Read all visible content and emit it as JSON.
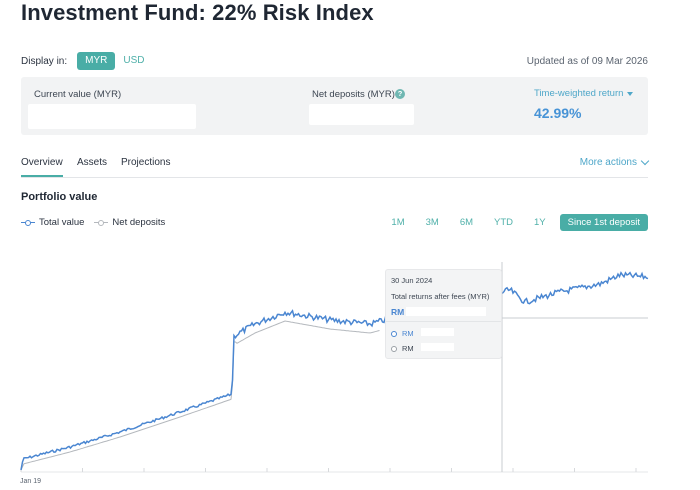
{
  "header": {
    "title": "Investment Fund: 22% Risk Index"
  },
  "display": {
    "label": "Display in:",
    "options": [
      "MYR",
      "USD"
    ],
    "selected": "MYR",
    "updated": "Updated as of 09 Mar 2026"
  },
  "summary": {
    "current_value_label": "Current value (MYR)",
    "net_deposits_label": "Net deposits (MYR)",
    "help_icon": "?",
    "twr_label": "Time-weighted return",
    "twr_value": "42.99%"
  },
  "tabs": [
    "Overview",
    "Assets",
    "Projections"
  ],
  "more_actions": "More actions",
  "section_title": "Portfolio value",
  "legend": [
    {
      "name": "Total value",
      "color": "#4a86d1"
    },
    {
      "name": "Net deposits",
      "color": "#b4b8bd"
    }
  ],
  "ranges": [
    "1M",
    "3M",
    "6M",
    "YTD",
    "1Y",
    "Since 1st deposit"
  ],
  "active_range": "Since 1st deposit",
  "tooltip": {
    "date": "30 Jun 2024",
    "subtitle": "Total returns after fees (MYR)",
    "main": "RM",
    "rows": [
      "RM",
      "RM"
    ]
  },
  "x_axis_start": "Jan 19",
  "colors": {
    "accent": "#49ada6",
    "link": "#4fa7c9",
    "total_value": "#4a86d1",
    "net_deposits": "#b4b8bd"
  }
}
